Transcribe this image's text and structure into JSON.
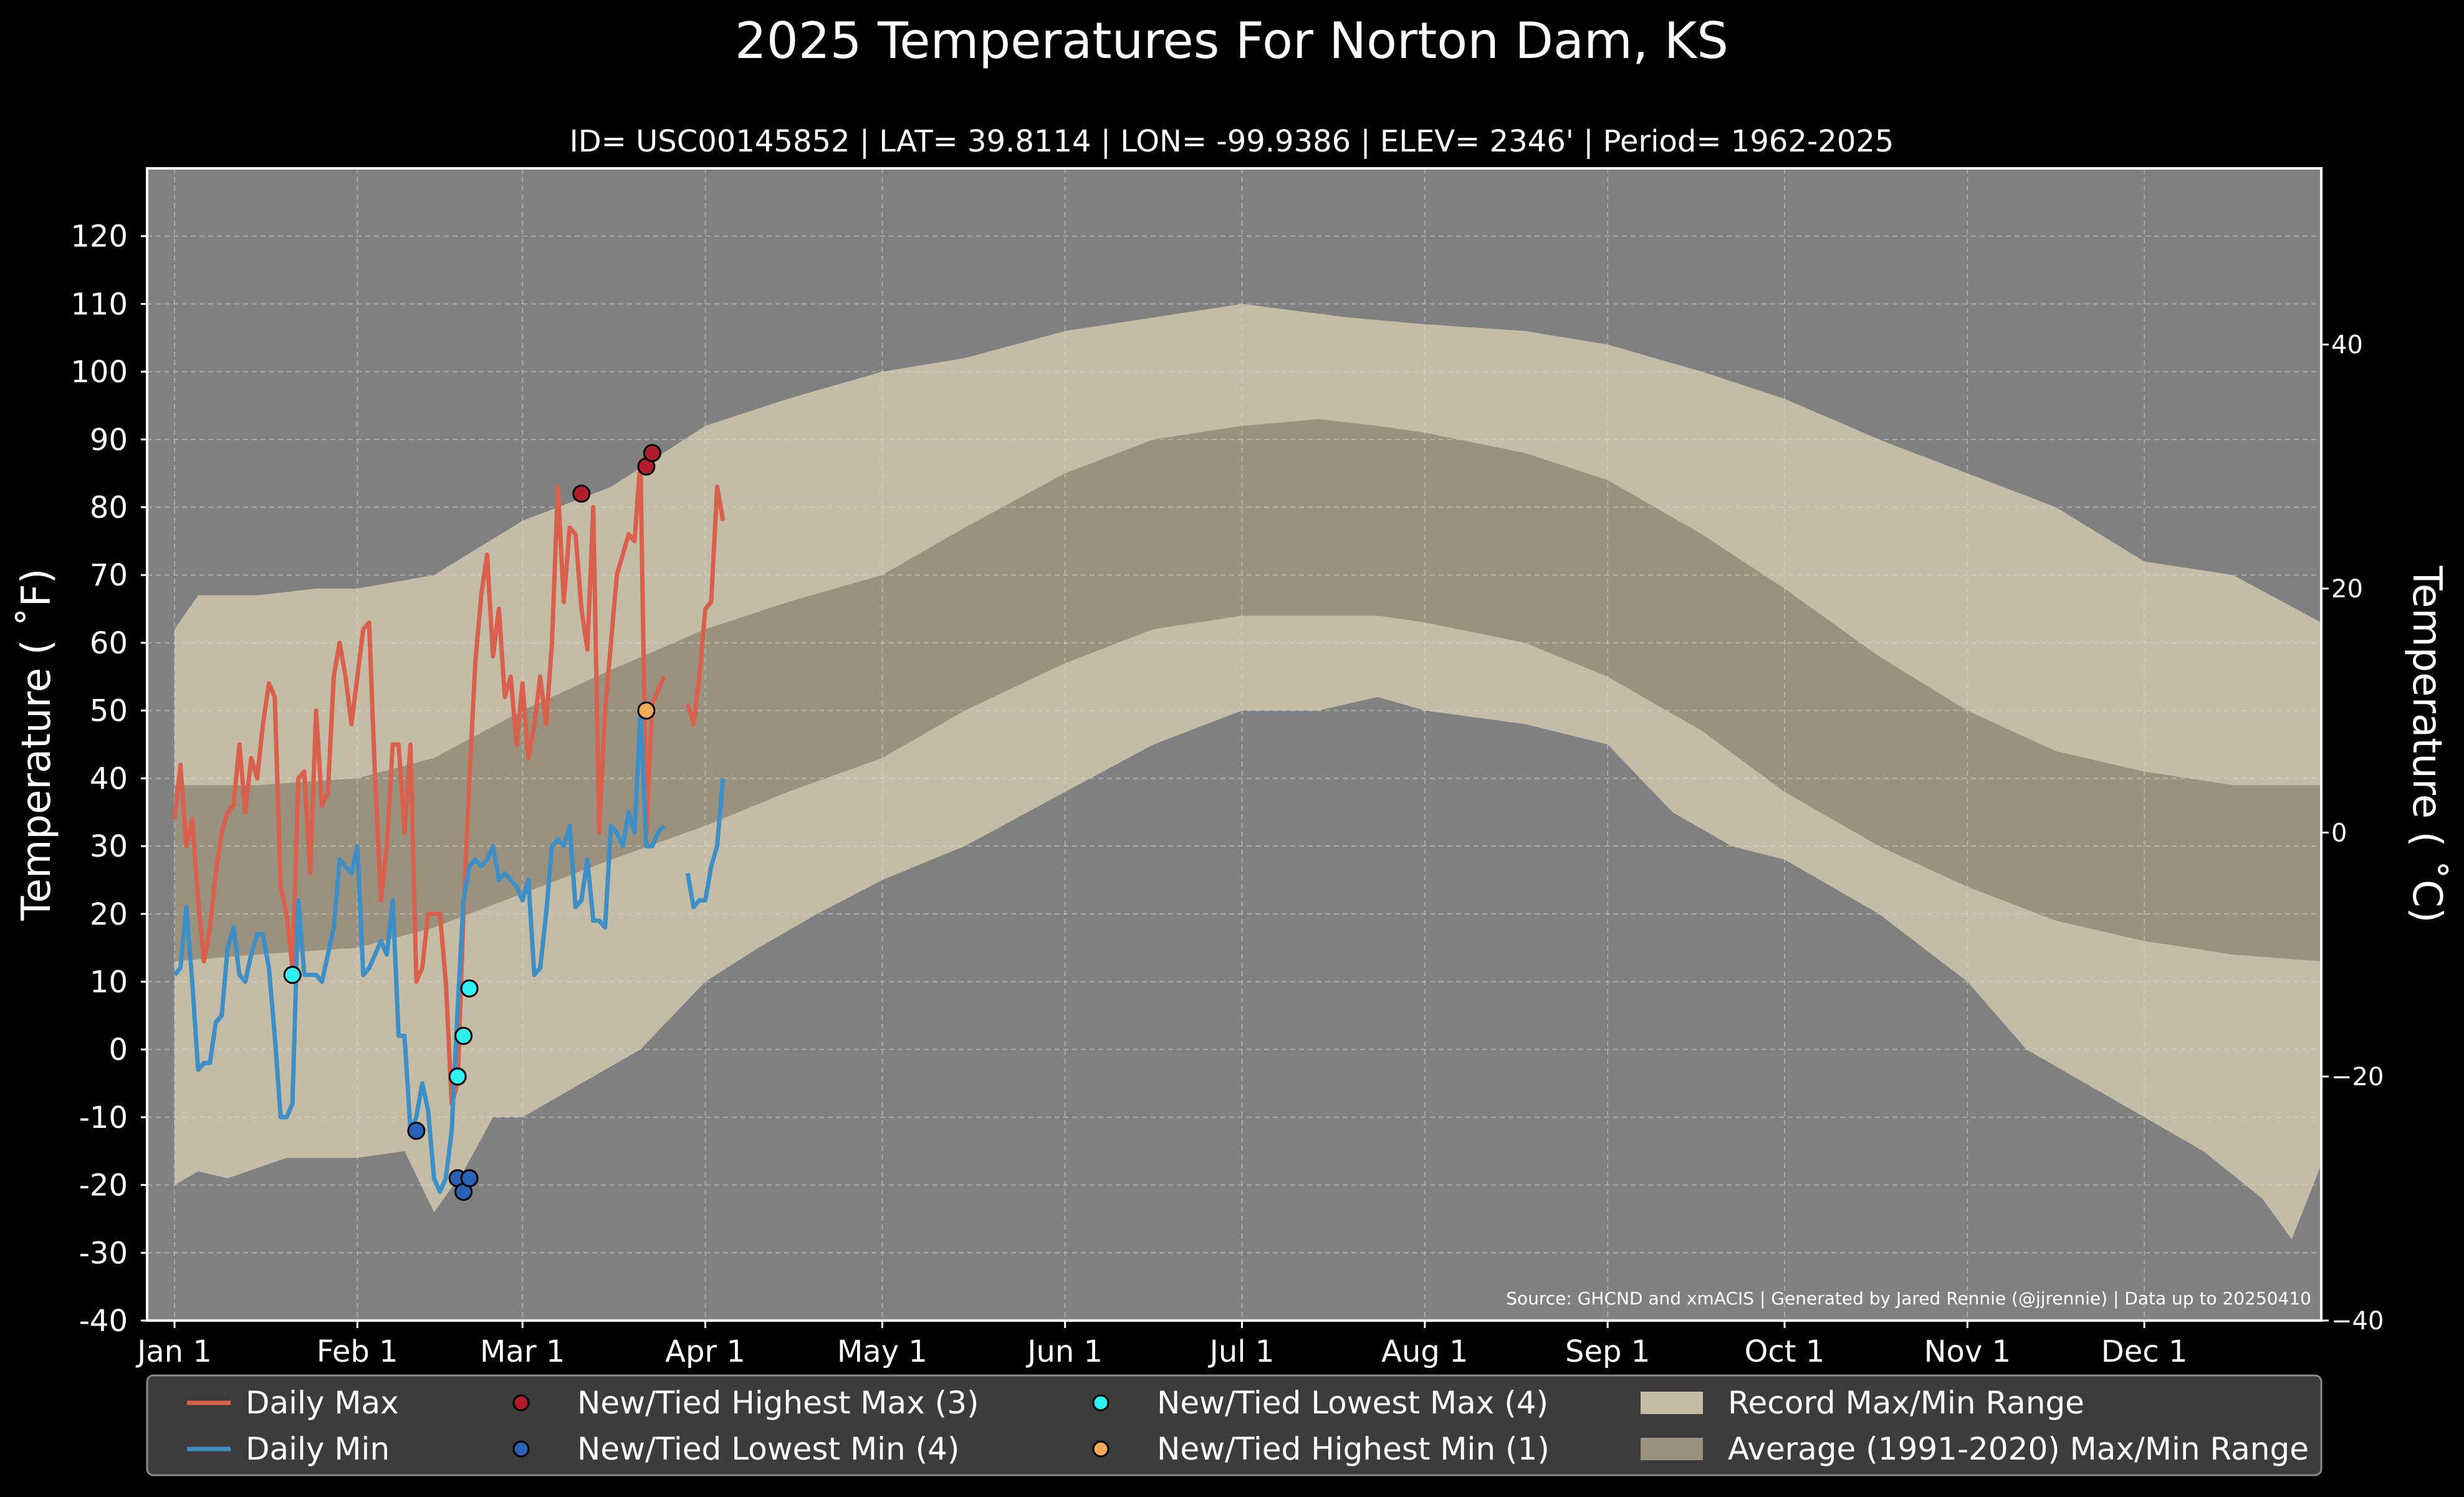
{
  "colors": {
    "background": "#000000",
    "plot_bg": "#808080",
    "record_range": "#c4bca6",
    "normal_range": "#9a917f",
    "daily_max": "#d9604c",
    "daily_min": "#3f8fc7",
    "high_max_marker": "#b01e2e",
    "low_min_marker": "#2a62b8",
    "low_max_marker": "#2ff0ee",
    "high_min_marker": "#f4a95a",
    "legend_bg": "#3c3c3c"
  },
  "chart_data": {
    "type": "line",
    "title": "2025 Temperatures For Norton Dam, KS",
    "subtitle": "ID= USC00145852 | LAT= 39.8114 | LON= -99.9386 | ELEV= 2346' | Period= 1962-2025",
    "ylabel_left": "Temperature ( ˚F)",
    "ylabel_right": "Temperature ( ˚C)",
    "source": "Source: GHCND and xmACIS | Generated by Jared Rennie (@jjrennie) | Data up to 20250410",
    "x_domain_days": [
      1,
      365
    ],
    "ylim": [
      -40,
      130
    ],
    "yticks": [
      -40,
      -30,
      -20,
      -10,
      0,
      10,
      20,
      30,
      40,
      50,
      60,
      70,
      80,
      90,
      100,
      110,
      120
    ],
    "yticks_right_c": [
      -40,
      -20,
      0,
      20,
      40
    ],
    "right_tick_labels": [
      "−40",
      "−20",
      "0",
      "20",
      "40"
    ],
    "grid": true,
    "x_ticks": [
      {
        "day": 1,
        "label": "Jan 1"
      },
      {
        "day": 32,
        "label": "Feb 1"
      },
      {
        "day": 60,
        "label": "Mar 1"
      },
      {
        "day": 91,
        "label": "Apr 1"
      },
      {
        "day": 121,
        "label": "May 1"
      },
      {
        "day": 152,
        "label": "Jun 1"
      },
      {
        "day": 182,
        "label": "Jul 1"
      },
      {
        "day": 213,
        "label": "Aug 1"
      },
      {
        "day": 244,
        "label": "Sep 1"
      },
      {
        "day": 274,
        "label": "Oct 1"
      },
      {
        "day": 305,
        "label": "Nov 1"
      },
      {
        "day": 335,
        "label": "Dec 1"
      }
    ],
    "record_max_anchors": [
      [
        1,
        62
      ],
      [
        5,
        67
      ],
      [
        15,
        67
      ],
      [
        25,
        68
      ],
      [
        32,
        68
      ],
      [
        45,
        70
      ],
      [
        60,
        78
      ],
      [
        75,
        83
      ],
      [
        91,
        92
      ],
      [
        105,
        96
      ],
      [
        121,
        100
      ],
      [
        135,
        102
      ],
      [
        152,
        106
      ],
      [
        167,
        108
      ],
      [
        182,
        110
      ],
      [
        200,
        108
      ],
      [
        213,
        107
      ],
      [
        230,
        106
      ],
      [
        244,
        104
      ],
      [
        260,
        100
      ],
      [
        274,
        96
      ],
      [
        290,
        90
      ],
      [
        305,
        85
      ],
      [
        320,
        80
      ],
      [
        335,
        72
      ],
      [
        350,
        70
      ],
      [
        365,
        63
      ]
    ],
    "record_min_anchors": [
      [
        1,
        -20
      ],
      [
        5,
        -18
      ],
      [
        10,
        -19
      ],
      [
        20,
        -16
      ],
      [
        32,
        -16
      ],
      [
        40,
        -15
      ],
      [
        45,
        -24
      ],
      [
        50,
        -18
      ],
      [
        55,
        -10
      ],
      [
        60,
        -10
      ],
      [
        70,
        -5
      ],
      [
        80,
        0
      ],
      [
        91,
        10
      ],
      [
        100,
        15
      ],
      [
        110,
        20
      ],
      [
        121,
        25
      ],
      [
        135,
        30
      ],
      [
        152,
        38
      ],
      [
        167,
        45
      ],
      [
        182,
        50
      ],
      [
        195,
        50
      ],
      [
        205,
        52
      ],
      [
        213,
        50
      ],
      [
        230,
        48
      ],
      [
        244,
        45
      ],
      [
        255,
        35
      ],
      [
        265,
        30
      ],
      [
        274,
        28
      ],
      [
        290,
        20
      ],
      [
        305,
        10
      ],
      [
        315,
        0
      ],
      [
        325,
        -5
      ],
      [
        335,
        -10
      ],
      [
        345,
        -15
      ],
      [
        355,
        -22
      ],
      [
        360,
        -28
      ],
      [
        365,
        -17
      ]
    ],
    "normal_max_anchors": [
      [
        1,
        39
      ],
      [
        15,
        39
      ],
      [
        32,
        40
      ],
      [
        45,
        43
      ],
      [
        60,
        50
      ],
      [
        75,
        56
      ],
      [
        91,
        62
      ],
      [
        105,
        66
      ],
      [
        121,
        70
      ],
      [
        135,
        77
      ],
      [
        152,
        85
      ],
      [
        167,
        90
      ],
      [
        182,
        92
      ],
      [
        195,
        93
      ],
      [
        205,
        92
      ],
      [
        213,
        91
      ],
      [
        230,
        88
      ],
      [
        244,
        84
      ],
      [
        260,
        76
      ],
      [
        274,
        68
      ],
      [
        290,
        58
      ],
      [
        305,
        50
      ],
      [
        320,
        44
      ],
      [
        335,
        41
      ],
      [
        350,
        39
      ],
      [
        365,
        39
      ]
    ],
    "normal_min_anchors": [
      [
        1,
        13
      ],
      [
        15,
        14
      ],
      [
        32,
        15
      ],
      [
        45,
        18
      ],
      [
        60,
        23
      ],
      [
        75,
        28
      ],
      [
        91,
        33
      ],
      [
        105,
        38
      ],
      [
        121,
        43
      ],
      [
        135,
        50
      ],
      [
        152,
        57
      ],
      [
        167,
        62
      ],
      [
        182,
        64
      ],
      [
        195,
        64
      ],
      [
        205,
        64
      ],
      [
        213,
        63
      ],
      [
        230,
        60
      ],
      [
        244,
        55
      ],
      [
        260,
        47
      ],
      [
        274,
        38
      ],
      [
        290,
        30
      ],
      [
        305,
        24
      ],
      [
        320,
        19
      ],
      [
        335,
        16
      ],
      [
        350,
        14
      ],
      [
        365,
        13
      ]
    ],
    "series": [
      {
        "name": "Daily Max",
        "points": [
          [
            1,
            34
          ],
          [
            2,
            42
          ],
          [
            3,
            30
          ],
          [
            4,
            34
          ],
          [
            5,
            22
          ],
          [
            6,
            13
          ],
          [
            7,
            18
          ],
          [
            8,
            26
          ],
          [
            9,
            32
          ],
          [
            10,
            35
          ],
          [
            11,
            36
          ],
          [
            12,
            45
          ],
          [
            13,
            35
          ],
          [
            14,
            43
          ],
          [
            15,
            40
          ],
          [
            16,
            48
          ],
          [
            17,
            54
          ],
          [
            18,
            52
          ],
          [
            19,
            24
          ],
          [
            20,
            20
          ],
          [
            21,
            12
          ],
          [
            22,
            40
          ],
          [
            23,
            41
          ],
          [
            24,
            26
          ],
          [
            25,
            50
          ],
          [
            26,
            36
          ],
          [
            27,
            38
          ],
          [
            28,
            55
          ],
          [
            29,
            60
          ],
          [
            30,
            55
          ],
          [
            31,
            48
          ],
          [
            32,
            55
          ],
          [
            33,
            62
          ],
          [
            34,
            63
          ],
          [
            35,
            40
          ],
          [
            36,
            22
          ],
          [
            37,
            30
          ],
          [
            38,
            45
          ],
          [
            39,
            45
          ],
          [
            40,
            32
          ],
          [
            41,
            45
          ],
          [
            42,
            10
          ],
          [
            43,
            12
          ],
          [
            44,
            20
          ],
          [
            45,
            20
          ],
          [
            46,
            20
          ],
          [
            47,
            10
          ],
          [
            48,
            -8
          ],
          [
            49,
            -5
          ],
          [
            50,
            20
          ],
          [
            51,
            40
          ],
          [
            52,
            57
          ],
          [
            53,
            67
          ],
          [
            54,
            73
          ],
          [
            55,
            58
          ],
          [
            56,
            65
          ],
          [
            57,
            52
          ],
          [
            58,
            55
          ],
          [
            59,
            45
          ],
          [
            60,
            54
          ],
          [
            61,
            43
          ],
          [
            62,
            48
          ],
          [
            63,
            55
          ],
          [
            64,
            48
          ],
          [
            65,
            60
          ],
          [
            66,
            83
          ],
          [
            67,
            66
          ],
          [
            68,
            77
          ],
          [
            69,
            76
          ],
          [
            70,
            65
          ],
          [
            71,
            59
          ],
          [
            72,
            80
          ],
          [
            73,
            32
          ],
          [
            74,
            50
          ],
          [
            75,
            60
          ],
          [
            76,
            70
          ],
          [
            77,
            73
          ],
          [
            78,
            76
          ],
          [
            79,
            75
          ],
          [
            80,
            87
          ],
          [
            81,
            32
          ],
          [
            82,
            51
          ],
          [
            83,
            53
          ],
          [
            84,
            55
          ],
          [
            null,
            null
          ],
          [
            88,
            51
          ],
          [
            89,
            48
          ],
          [
            90,
            55
          ],
          [
            91,
            65
          ],
          [
            92,
            66
          ],
          [
            93,
            83
          ],
          [
            94,
            78
          ]
        ]
      },
      {
        "name": "Daily Min",
        "points": [
          [
            1,
            11
          ],
          [
            2,
            12
          ],
          [
            3,
            21
          ],
          [
            4,
            10
          ],
          [
            5,
            -3
          ],
          [
            6,
            -2
          ],
          [
            7,
            -2
          ],
          [
            8,
            4
          ],
          [
            9,
            5
          ],
          [
            10,
            15
          ],
          [
            11,
            18
          ],
          [
            12,
            11
          ],
          [
            13,
            10
          ],
          [
            14,
            14
          ],
          [
            15,
            17
          ],
          [
            16,
            17
          ],
          [
            17,
            12
          ],
          [
            18,
            2
          ],
          [
            19,
            -10
          ],
          [
            20,
            -10
          ],
          [
            21,
            -8
          ],
          [
            22,
            22
          ],
          [
            23,
            11
          ],
          [
            24,
            11
          ],
          [
            25,
            11
          ],
          [
            26,
            10
          ],
          [
            27,
            14
          ],
          [
            28,
            18
          ],
          [
            29,
            28
          ],
          [
            30,
            27
          ],
          [
            31,
            26
          ],
          [
            32,
            30
          ],
          [
            33,
            11
          ],
          [
            34,
            12
          ],
          [
            35,
            14
          ],
          [
            36,
            16
          ],
          [
            37,
            14
          ],
          [
            38,
            22
          ],
          [
            39,
            2
          ],
          [
            40,
            2
          ],
          [
            41,
            -12
          ],
          [
            42,
            -10
          ],
          [
            43,
            -5
          ],
          [
            44,
            -9
          ],
          [
            45,
            -19
          ],
          [
            46,
            -21
          ],
          [
            47,
            -19
          ],
          [
            48,
            -12
          ],
          [
            49,
            6
          ],
          [
            50,
            22
          ],
          [
            51,
            27
          ],
          [
            52,
            28
          ],
          [
            53,
            27
          ],
          [
            54,
            28
          ],
          [
            55,
            30
          ],
          [
            56,
            25
          ],
          [
            57,
            26
          ],
          [
            58,
            25
          ],
          [
            59,
            24
          ],
          [
            60,
            22
          ],
          [
            61,
            25
          ],
          [
            62,
            11
          ],
          [
            63,
            12
          ],
          [
            64,
            20
          ],
          [
            65,
            30
          ],
          [
            66,
            31
          ],
          [
            67,
            30
          ],
          [
            68,
            33
          ],
          [
            69,
            21
          ],
          [
            70,
            22
          ],
          [
            71,
            28
          ],
          [
            72,
            19
          ],
          [
            73,
            19
          ],
          [
            74,
            18
          ],
          [
            75,
            33
          ],
          [
            76,
            32
          ],
          [
            77,
            30
          ],
          [
            78,
            35
          ],
          [
            79,
            32
          ],
          [
            80,
            50
          ],
          [
            81,
            30
          ],
          [
            82,
            30
          ],
          [
            83,
            32
          ],
          [
            84,
            33
          ],
          [
            null,
            null
          ],
          [
            88,
            26
          ],
          [
            89,
            21
          ],
          [
            90,
            22
          ],
          [
            91,
            22
          ],
          [
            92,
            27
          ],
          [
            93,
            30
          ],
          [
            94,
            40
          ]
        ]
      }
    ],
    "markers": [
      {
        "name": "New/Tied Highest Max (3)",
        "points": [
          [
            70,
            82
          ],
          [
            81,
            86
          ],
          [
            82,
            88
          ]
        ]
      },
      {
        "name": "New/Tied Lowest Min (4)",
        "points": [
          [
            42,
            -12
          ],
          [
            49,
            -19
          ],
          [
            50,
            -21
          ],
          [
            51,
            -19
          ]
        ]
      },
      {
        "name": "New/Tied Lowest Max (4)",
        "points": [
          [
            21,
            11
          ],
          [
            49,
            -4
          ],
          [
            50,
            2
          ],
          [
            51,
            9
          ]
        ]
      },
      {
        "name": "New/Tied Highest Min (1)",
        "points": [
          [
            81,
            50
          ]
        ]
      }
    ],
    "legend_position": "bottom",
    "legend": [
      {
        "label": "Daily Max",
        "kind": "line",
        "color_key": "daily_max"
      },
      {
        "label": "Daily Min",
        "kind": "line",
        "color_key": "daily_min"
      },
      {
        "label": "New/Tied Highest Max (3)",
        "kind": "dot",
        "color_key": "high_max_marker"
      },
      {
        "label": "New/Tied Lowest Min (4)",
        "kind": "dot",
        "color_key": "low_min_marker"
      },
      {
        "label": "New/Tied Lowest Max (4)",
        "kind": "dot",
        "color_key": "low_max_marker"
      },
      {
        "label": "New/Tied Highest Min (1)",
        "kind": "dot",
        "color_key": "high_min_marker"
      },
      {
        "label": "Record Max/Min Range",
        "kind": "patch",
        "color_key": "record_range"
      },
      {
        "label": "Average (1991-2020) Max/Min Range",
        "kind": "patch",
        "color_key": "normal_range"
      }
    ]
  }
}
